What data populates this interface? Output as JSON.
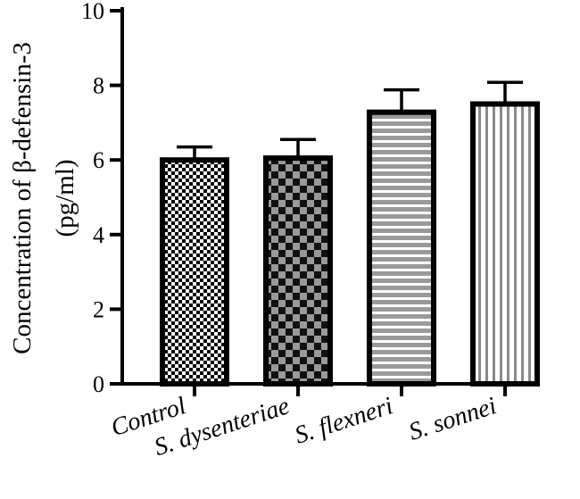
{
  "chart_data": {
    "type": "bar",
    "categories": [
      "Control",
      "S. dysenteriae",
      "S. flexneri",
      "S. sonnei"
    ],
    "values": [
      6.0,
      6.05,
      7.28,
      7.5
    ],
    "errors": [
      0.35,
      0.5,
      0.6,
      0.58
    ],
    "patterns": [
      "checker-fine",
      "checker-coarse",
      "horizontal-lines",
      "vertical-lines"
    ],
    "title": "",
    "xlabel": "",
    "ylabel_line1": "Concentration of β-defensin-3",
    "ylabel_line2": "(pg/ml)",
    "ylim": [
      0,
      10
    ],
    "yticks": [
      "0",
      "2",
      "4",
      "6",
      "8",
      "10"
    ],
    "grid": false,
    "colors": {
      "stroke": "#000000",
      "fill_light": "#ffffff",
      "fill_mid": "#aaaaaa",
      "fill_dark": "#000000"
    }
  }
}
